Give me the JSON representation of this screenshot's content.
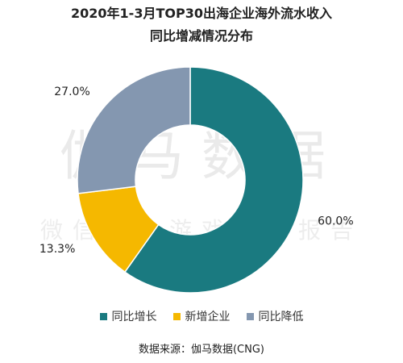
{
  "title_line1": "2020年1-3月TOP30出海企业海外流水收入",
  "title_line2": "同比增减情况分布",
  "watermark": {
    "main": "伽马数据",
    "sub": "微信号：游戏产业报告"
  },
  "source": "数据来源：伽马数据(CNG)",
  "chart_data": {
    "type": "pie",
    "donut": true,
    "title": "2020年1-3月TOP30出海企业海外流水收入同比增减情况分布",
    "categories": [
      "同比增长",
      "新增企业",
      "同比降低"
    ],
    "values": [
      60.0,
      13.3,
      27.0
    ],
    "labels": [
      "60.0%",
      "13.3%",
      "27.0%"
    ],
    "colors": [
      "#1a7a80",
      "#f5b800",
      "#8497b0"
    ],
    "legend_position": "bottom"
  }
}
